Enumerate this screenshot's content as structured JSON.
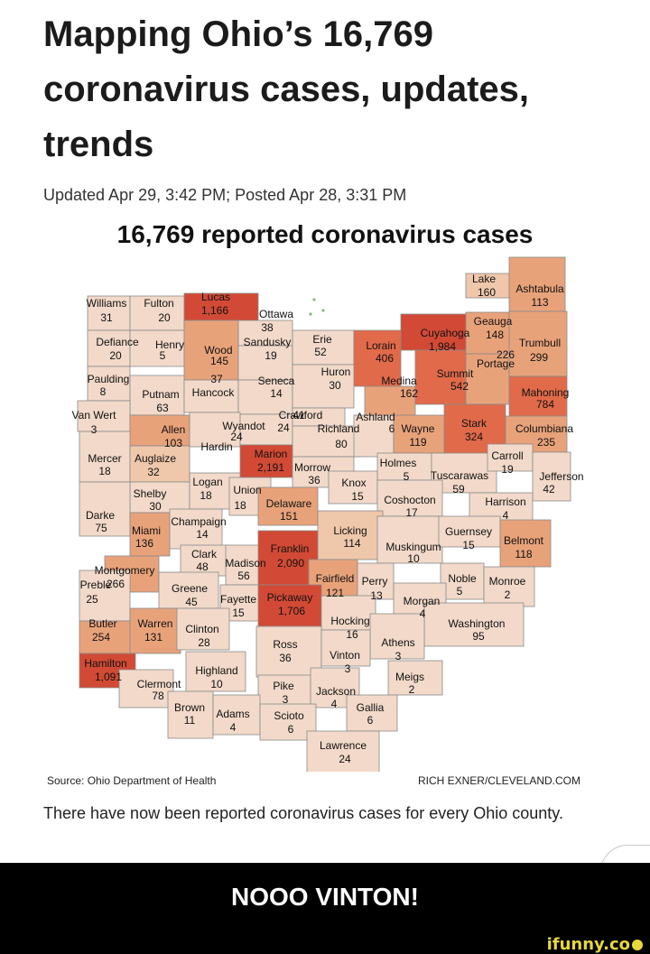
{
  "article": {
    "headline": "Mapping Ohio’s 16,769 coronavirus cases, updates, trends",
    "meta": "Updated Apr 29, 3:42 PM; Posted Apr 28, 3:31 PM",
    "map_title": "16,769 reported coronavirus cases",
    "source": "Source: Ohio Department of Health",
    "credit": "RICH EXNER/CLEVELAND.COM",
    "caption": "There have now been reported coronavirus cases for every Ohio county."
  },
  "meme": {
    "text": "NOOO VINTON!",
    "brand": "ifunny.co"
  },
  "colors": {
    "lightest": "#f2d9c9",
    "light": "#efc7ab",
    "medium": "#e8a27a",
    "dark": "#e16a4a",
    "darkest": "#d24a35",
    "border": "#8a8a8a",
    "text": "#111111"
  },
  "counties": [
    {
      "name": "Williams",
      "cases": "31",
      "shade": "lightest"
    },
    {
      "name": "Fulton",
      "cases": "20",
      "shade": "lightest"
    },
    {
      "name": "Lucas",
      "cases": "1,166",
      "shade": "darkest"
    },
    {
      "name": "Ottawa",
      "cases": "38",
      "shade": "lightest"
    },
    {
      "name": "Lake",
      "cases": "160",
      "shade": "light"
    },
    {
      "name": "Ashtabula",
      "cases": "113",
      "shade": "medium"
    },
    {
      "name": "Geauga",
      "cases": "148",
      "shade": "medium"
    },
    {
      "name": "Defiance",
      "cases": "20",
      "shade": "lightest"
    },
    {
      "name": "Henry",
      "cases": "5",
      "shade": "lightest"
    },
    {
      "name": "Wood",
      "cases": "145",
      "shade": "medium"
    },
    {
      "name": "Sandusky",
      "cases": "19",
      "shade": "lightest"
    },
    {
      "name": "Erie",
      "cases": "52",
      "shade": "lightest"
    },
    {
      "name": "Lorain",
      "cases": "406",
      "shade": "dark"
    },
    {
      "name": "Cuyahoga",
      "cases": "1,984",
      "shade": "darkest"
    },
    {
      "name": "Portage",
      "cases": "226",
      "shade": "medium"
    },
    {
      "name": "Trumbull",
      "cases": "299",
      "shade": "medium"
    },
    {
      "name": "Paulding",
      "cases": "8",
      "shade": "lightest"
    },
    {
      "name": "Putnam",
      "cases": "63",
      "shade": "lightest"
    },
    {
      "name": "Hancock",
      "cases": "37",
      "shade": "lightest"
    },
    {
      "name": "Seneca",
      "cases": "14",
      "shade": "lightest"
    },
    {
      "name": "Huron",
      "cases": "30",
      "shade": "lightest"
    },
    {
      "name": "Medina",
      "cases": "162",
      "shade": "medium"
    },
    {
      "name": "Summit",
      "cases": "542",
      "shade": "dark"
    },
    {
      "name": "Mahoning",
      "cases": "784",
      "shade": "dark"
    },
    {
      "name": "Van Wert",
      "cases": "3",
      "shade": "lightest"
    },
    {
      "name": "Allen",
      "cases": "103",
      "shade": "medium"
    },
    {
      "name": "Hardin",
      "cases": "24",
      "shade": "lightest"
    },
    {
      "name": "Wyandot",
      "cases": "24",
      "shade": "lightest"
    },
    {
      "name": "Crawford",
      "cases": "41",
      "shade": "lightest"
    },
    {
      "name": "Richland",
      "cases": "80",
      "shade": "lightest"
    },
    {
      "name": "Ashland",
      "cases": "6",
      "shade": "lightest"
    },
    {
      "name": "Wayne",
      "cases": "119",
      "shade": "medium"
    },
    {
      "name": "Stark",
      "cases": "324",
      "shade": "dark"
    },
    {
      "name": "Columbiana",
      "cases": "235",
      "shade": "medium"
    },
    {
      "name": "Mercer",
      "cases": "18",
      "shade": "lightest"
    },
    {
      "name": "Auglaize",
      "cases": "32",
      "shade": "light"
    },
    {
      "name": "Marion",
      "cases": "2,191",
      "shade": "darkest"
    },
    {
      "name": "Morrow",
      "cases": "36",
      "shade": "lightest"
    },
    {
      "name": "Holmes",
      "cases": "5",
      "shade": "lightest"
    },
    {
      "name": "Tuscarawas",
      "cases": "59",
      "shade": "lightest"
    },
    {
      "name": "Carroll",
      "cases": "19",
      "shade": "lightest"
    },
    {
      "name": "Jefferson",
      "cases": "42",
      "shade": "lightest"
    },
    {
      "name": "Shelby",
      "cases": "30",
      "shade": "lightest"
    },
    {
      "name": "Logan",
      "cases": "18",
      "shade": "lightest"
    },
    {
      "name": "Union",
      "cases": "18",
      "shade": "lightest"
    },
    {
      "name": "Delaware",
      "cases": "151",
      "shade": "medium"
    },
    {
      "name": "Knox",
      "cases": "15",
      "shade": "lightest"
    },
    {
      "name": "Coshocton",
      "cases": "17",
      "shade": "lightest"
    },
    {
      "name": "Harrison",
      "cases": "4",
      "shade": "lightest"
    },
    {
      "name": "Darke",
      "cases": "75",
      "shade": "lightest"
    },
    {
      "name": "Miami",
      "cases": "136",
      "shade": "medium"
    },
    {
      "name": "Champaign",
      "cases": "14",
      "shade": "lightest"
    },
    {
      "name": "Licking",
      "cases": "114",
      "shade": "light"
    },
    {
      "name": "Muskingum",
      "cases": "10",
      "shade": "lightest"
    },
    {
      "name": "Guernsey",
      "cases": "15",
      "shade": "lightest"
    },
    {
      "name": "Belmont",
      "cases": "118",
      "shade": "medium"
    },
    {
      "name": "Clark",
      "cases": "48",
      "shade": "lightest"
    },
    {
      "name": "Madison",
      "cases": "56",
      "shade": "lightest"
    },
    {
      "name": "Franklin",
      "cases": "2,090",
      "shade": "darkest"
    },
    {
      "name": "Montgomery",
      "cases": "266",
      "shade": "medium"
    },
    {
      "name": "Greene",
      "cases": "45",
      "shade": "lightest"
    },
    {
      "name": "Fairfield",
      "cases": "121",
      "shade": "medium"
    },
    {
      "name": "Perry",
      "cases": "13",
      "shade": "lightest"
    },
    {
      "name": "Noble",
      "cases": "5",
      "shade": "lightest"
    },
    {
      "name": "Monroe",
      "cases": "2",
      "shade": "lightest"
    },
    {
      "name": "Preble",
      "cases": "25",
      "shade": "lightest"
    },
    {
      "name": "Fayette",
      "cases": "15",
      "shade": "lightest"
    },
    {
      "name": "Pickaway",
      "cases": "1,706",
      "shade": "darkest"
    },
    {
      "name": "Morgan",
      "cases": "4",
      "shade": "lightest"
    },
    {
      "name": "Washington",
      "cases": "95",
      "shade": "lightest"
    },
    {
      "name": "Butler",
      "cases": "254",
      "shade": "medium"
    },
    {
      "name": "Warren",
      "cases": "131",
      "shade": "medium"
    },
    {
      "name": "Clinton",
      "cases": "28",
      "shade": "lightest"
    },
    {
      "name": "Hocking",
      "cases": "16",
      "shade": "lightest"
    },
    {
      "name": "Athens",
      "cases": "3",
      "shade": "lightest"
    },
    {
      "name": "Ross",
      "cases": "36",
      "shade": "lightest"
    },
    {
      "name": "Vinton",
      "cases": "3",
      "shade": "lightest"
    },
    {
      "name": "Hamilton",
      "cases": "1,091",
      "shade": "darkest"
    },
    {
      "name": "Highland",
      "cases": "10",
      "shade": "lightest"
    },
    {
      "name": "Clermont",
      "cases": "78",
      "shade": "lightest"
    },
    {
      "name": "Pike",
      "cases": "3",
      "shade": "lightest"
    },
    {
      "name": "Jackson",
      "cases": "4",
      "shade": "lightest"
    },
    {
      "name": "Meigs",
      "cases": "2",
      "shade": "lightest"
    },
    {
      "name": "Brown",
      "cases": "11",
      "shade": "lightest"
    },
    {
      "name": "Adams",
      "cases": "4",
      "shade": "lightest"
    },
    {
      "name": "Scioto",
      "cases": "6",
      "shade": "lightest"
    },
    {
      "name": "Gallia",
      "cases": "6",
      "shade": "lightest"
    },
    {
      "name": "Lawrence",
      "cases": "24",
      "shade": "lightest"
    }
  ]
}
